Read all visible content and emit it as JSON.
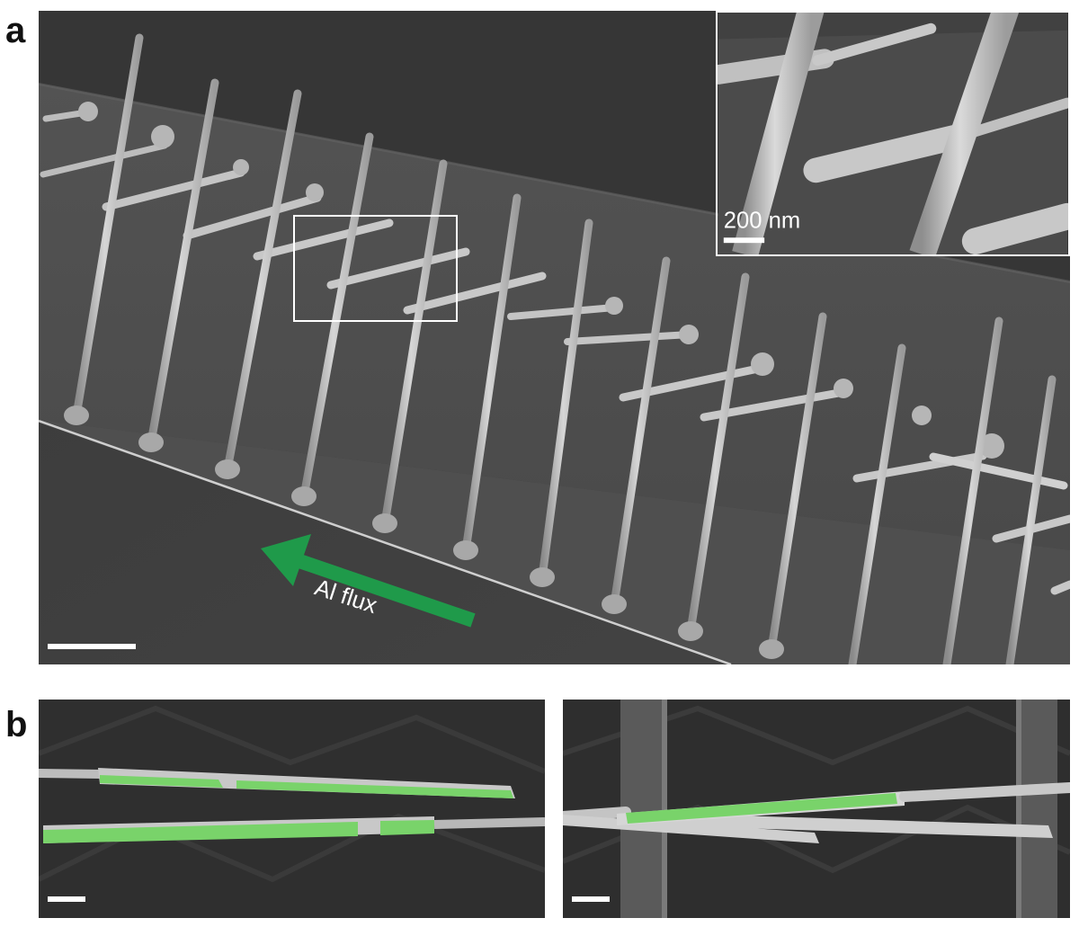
{
  "figure": {
    "panel_a": {
      "letter": "a",
      "inset_scale_label": "200 nm",
      "arrow_label": "Al flux",
      "arrow_color": "#1f9a4a"
    },
    "panel_b": {
      "letter": "b",
      "coating_color": "#79d36a"
    }
  }
}
